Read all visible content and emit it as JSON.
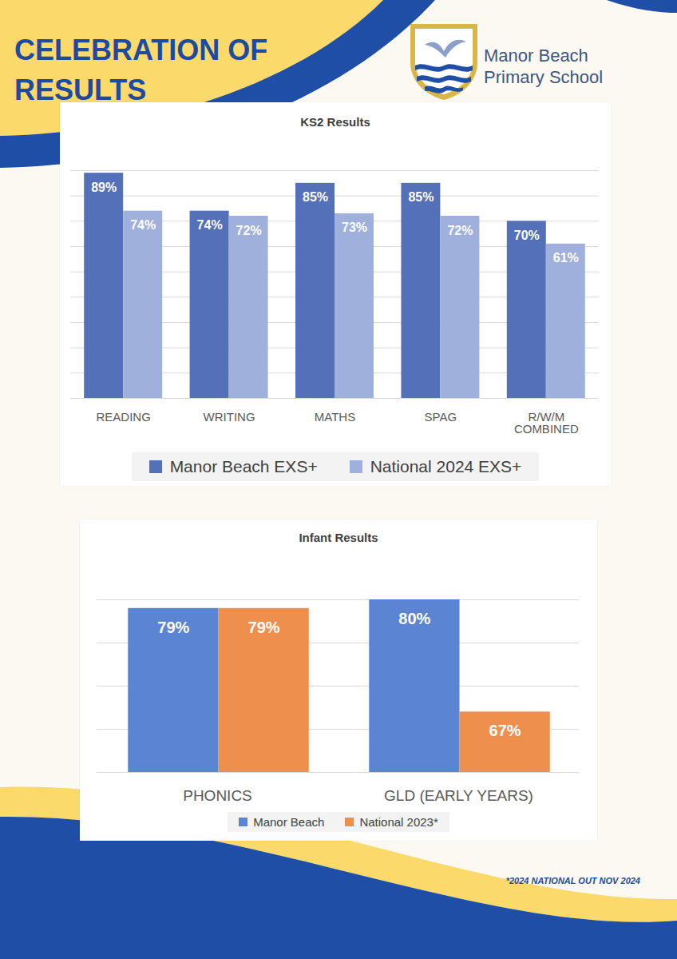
{
  "header": {
    "title": "CELEBRATION OF RESULTS",
    "school": "Manor Beach Primary School"
  },
  "footnote": "*2024 NATIONAL OUT NOV 2024",
  "chart_data": [
    {
      "type": "bar",
      "title": "KS2 Results",
      "categories": [
        "READING",
        "WRITING",
        "MATHS",
        "SPAG",
        "R/W/M COMBINED"
      ],
      "series": [
        {
          "name": "Manor Beach EXS+",
          "color": "#5470b8",
          "values": [
            89,
            74,
            85,
            85,
            70
          ],
          "value_labels": [
            "89%",
            "74%",
            "85%",
            "85%",
            "70%"
          ]
        },
        {
          "name": "National 2024 EXS+",
          "color": "#9fb0dc",
          "values": [
            74,
            72,
            73,
            72,
            61
          ],
          "value_labels": [
            "74%",
            "72%",
            "73%",
            "72%",
            "61%"
          ]
        }
      ],
      "ylim": [
        0,
        90
      ],
      "yticks": [
        0,
        10,
        20,
        30,
        40,
        50,
        60,
        70,
        80,
        90
      ],
      "grid": true,
      "legend": "bottom",
      "data_labels": true,
      "tick_labels": "x"
    },
    {
      "type": "bar",
      "title": "Infant Results",
      "categories": [
        "PHONICS",
        "GLD (EARLY YEARS)"
      ],
      "series": [
        {
          "name": "Manor Beach",
          "color": "#5b85d3",
          "values": [
            79,
            80
          ],
          "value_labels": [
            "79%",
            "80%"
          ]
        },
        {
          "name": "National 2023*",
          "color": "#ef8f4e",
          "values": [
            79,
            67
          ],
          "value_labels": [
            "79%",
            "67%"
          ]
        }
      ],
      "ylim": [
        60,
        80
      ],
      "yticks": [
        60,
        65,
        70,
        75,
        80
      ],
      "grid": true,
      "legend": "bottom",
      "data_labels": true,
      "tick_labels": "x"
    }
  ]
}
